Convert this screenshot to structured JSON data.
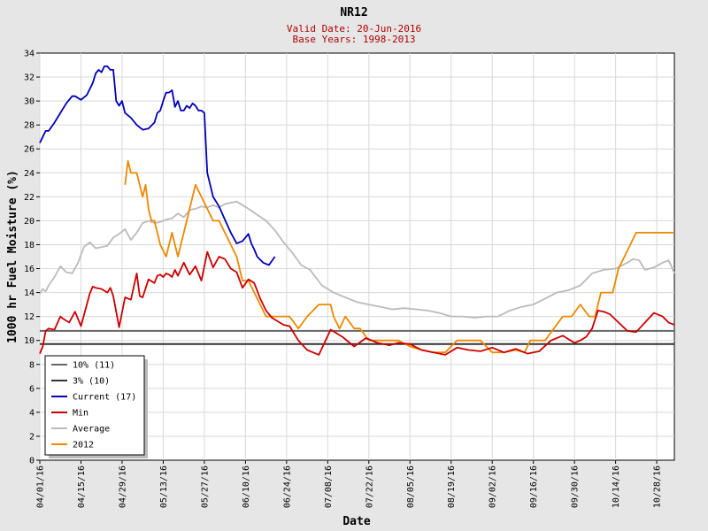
{
  "chart_data": {
    "type": "line",
    "title": "NR12",
    "subtitle_lines": [
      "Valid Date: 20-Jun-2016",
      "Base Years: 1998-2013"
    ],
    "xlabel": "Date",
    "ylabel": "1000 hr Fuel Moisture (%)",
    "ylim": [
      0,
      34
    ],
    "yticks": [
      0,
      2,
      4,
      6,
      8,
      10,
      12,
      14,
      16,
      18,
      20,
      22,
      24,
      26,
      28,
      30,
      32,
      34
    ],
    "xlim": [
      "2016-04-01",
      "2016-11-03"
    ],
    "xticks": [
      "04/01/16",
      "04/15/16",
      "04/29/16",
      "05/13/16",
      "05/27/16",
      "06/10/16",
      "06/24/16",
      "07/08/16",
      "07/22/16",
      "08/05/16",
      "08/19/16",
      "09/02/16",
      "09/16/16",
      "09/30/16",
      "10/14/16",
      "10/28/16"
    ],
    "grid": true,
    "legend_position": "bottom-left",
    "series": [
      {
        "name": "10% (11)",
        "color": "#666666",
        "type": "hline",
        "y": 10.8
      },
      {
        "name": "3% (10)",
        "color": "#333333",
        "type": "hline",
        "y": 9.7
      },
      {
        "name": "Current (17)",
        "color": "#0000bb",
        "x": [
          "2016-04-01",
          "2016-04-02",
          "2016-04-03",
          "2016-04-04",
          "2016-04-06",
          "2016-04-08",
          "2016-04-10",
          "2016-04-12",
          "2016-04-13",
          "2016-04-15",
          "2016-04-17",
          "2016-04-19",
          "2016-04-20",
          "2016-04-21",
          "2016-04-22",
          "2016-04-23",
          "2016-04-24",
          "2016-04-25",
          "2016-04-26",
          "2016-04-27",
          "2016-04-28",
          "2016-04-29",
          "2016-04-30",
          "2016-05-02",
          "2016-05-04",
          "2016-05-06",
          "2016-05-08",
          "2016-05-10",
          "2016-05-11",
          "2016-05-12",
          "2016-05-13",
          "2016-05-14",
          "2016-05-15",
          "2016-05-16",
          "2016-05-17",
          "2016-05-18",
          "2016-05-19",
          "2016-05-20",
          "2016-05-21",
          "2016-05-22",
          "2016-05-23",
          "2016-05-24",
          "2016-05-25",
          "2016-05-26",
          "2016-05-27",
          "2016-05-28",
          "2016-05-29",
          "2016-05-30",
          "2016-06-01",
          "2016-06-03",
          "2016-06-05",
          "2016-06-07",
          "2016-06-09",
          "2016-06-11",
          "2016-06-12",
          "2016-06-13",
          "2016-06-14",
          "2016-06-16",
          "2016-06-18",
          "2016-06-20"
        ],
        "values": [
          26.5,
          27.0,
          27.5,
          27.5,
          28.2,
          29.0,
          29.8,
          30.4,
          30.4,
          30.1,
          30.5,
          31.5,
          32.3,
          32.6,
          32.4,
          32.9,
          32.9,
          32.6,
          32.6,
          30.0,
          29.6,
          30.0,
          29.0,
          28.6,
          28.0,
          27.6,
          27.7,
          28.2,
          29.0,
          29.2,
          30.0,
          30.7,
          30.7,
          30.9,
          29.5,
          30.0,
          29.2,
          29.2,
          29.6,
          29.4,
          29.8,
          29.6,
          29.2,
          29.2,
          29.0,
          24.0,
          23.0,
          22.0,
          21.2,
          20.1,
          19.0,
          18.1,
          18.3,
          18.9,
          18.1,
          17.6,
          17.0,
          16.5,
          16.3,
          17.0
        ]
      },
      {
        "name": "Min",
        "color": "#cc0000",
        "x": [
          "2016-04-01",
          "2016-04-02",
          "2016-04-03",
          "2016-04-04",
          "2016-04-06",
          "2016-04-08",
          "2016-04-09",
          "2016-04-11",
          "2016-04-13",
          "2016-04-15",
          "2016-04-17",
          "2016-04-18",
          "2016-04-19",
          "2016-04-20",
          "2016-04-22",
          "2016-04-24",
          "2016-04-25",
          "2016-04-26",
          "2016-04-28",
          "2016-04-30",
          "2016-05-02",
          "2016-05-04",
          "2016-05-05",
          "2016-05-06",
          "2016-05-08",
          "2016-05-10",
          "2016-05-11",
          "2016-05-12",
          "2016-05-13",
          "2016-05-14",
          "2016-05-15",
          "2016-05-16",
          "2016-05-17",
          "2016-05-18",
          "2016-05-20",
          "2016-05-22",
          "2016-05-24",
          "2016-05-26",
          "2016-05-28",
          "2016-05-30",
          "2016-06-01",
          "2016-06-03",
          "2016-06-05",
          "2016-06-07",
          "2016-06-09",
          "2016-06-11",
          "2016-06-13",
          "2016-06-15",
          "2016-06-17",
          "2016-06-19",
          "2016-06-21",
          "2016-06-23",
          "2016-06-25",
          "2016-06-28",
          "2016-07-01",
          "2016-07-05",
          "2016-07-09",
          "2016-07-13",
          "2016-07-17",
          "2016-07-21",
          "2016-07-25",
          "2016-07-29",
          "2016-08-01",
          "2016-08-05",
          "2016-08-09",
          "2016-08-13",
          "2016-08-17",
          "2016-08-21",
          "2016-08-25",
          "2016-08-29",
          "2016-09-02",
          "2016-09-06",
          "2016-09-10",
          "2016-09-14",
          "2016-09-18",
          "2016-09-22",
          "2016-09-26",
          "2016-09-30",
          "2016-10-02",
          "2016-10-04",
          "2016-10-06",
          "2016-10-08",
          "2016-10-10",
          "2016-10-12",
          "2016-10-15",
          "2016-10-18",
          "2016-10-21",
          "2016-10-24",
          "2016-10-27",
          "2016-10-30",
          "2016-11-01",
          "2016-11-03"
        ],
        "values": [
          8.9,
          9.5,
          10.8,
          11.0,
          10.9,
          12.0,
          11.8,
          11.5,
          12.4,
          11.2,
          13.0,
          13.9,
          14.5,
          14.4,
          14.3,
          14.0,
          14.4,
          13.7,
          11.1,
          13.6,
          13.4,
          15.6,
          13.7,
          13.6,
          15.1,
          14.8,
          15.4,
          15.5,
          15.3,
          15.6,
          15.5,
          15.3,
          15.9,
          15.4,
          16.5,
          15.5,
          16.2,
          15.0,
          17.4,
          16.1,
          17.0,
          16.8,
          16.0,
          15.7,
          14.4,
          15.1,
          14.8,
          13.5,
          12.5,
          11.9,
          11.6,
          11.3,
          11.2,
          10.0,
          9.2,
          8.8,
          10.9,
          10.3,
          9.5,
          10.2,
          9.8,
          9.6,
          9.8,
          9.7,
          9.2,
          9.0,
          8.8,
          9.4,
          9.2,
          9.1,
          9.4,
          9.0,
          9.3,
          8.9,
          9.1,
          10.0,
          10.4,
          9.8,
          10.0,
          10.3,
          11.0,
          12.5,
          12.4,
          12.2,
          11.5,
          10.8,
          10.7,
          11.5,
          12.3,
          12.0,
          11.5,
          11.3
        ]
      },
      {
        "name": "Average",
        "color": "#bbbbbb",
        "x": [
          "2016-04-01",
          "2016-04-02",
          "2016-04-03",
          "2016-04-04",
          "2016-04-06",
          "2016-04-08",
          "2016-04-10",
          "2016-04-12",
          "2016-04-14",
          "2016-04-16",
          "2016-04-18",
          "2016-04-20",
          "2016-04-22",
          "2016-04-24",
          "2016-04-26",
          "2016-04-28",
          "2016-04-30",
          "2016-05-02",
          "2016-05-04",
          "2016-05-06",
          "2016-05-08",
          "2016-05-10",
          "2016-05-12",
          "2016-05-14",
          "2016-05-16",
          "2016-05-18",
          "2016-05-20",
          "2016-05-22",
          "2016-05-24",
          "2016-05-26",
          "2016-05-28",
          "2016-05-30",
          "2016-06-01",
          "2016-06-03",
          "2016-06-05",
          "2016-06-07",
          "2016-06-09",
          "2016-06-11",
          "2016-06-14",
          "2016-06-17",
          "2016-06-20",
          "2016-06-23",
          "2016-06-26",
          "2016-06-29",
          "2016-07-02",
          "2016-07-06",
          "2016-07-10",
          "2016-07-14",
          "2016-07-18",
          "2016-07-22",
          "2016-07-26",
          "2016-07-30",
          "2016-08-03",
          "2016-08-07",
          "2016-08-11",
          "2016-08-15",
          "2016-08-19",
          "2016-08-23",
          "2016-08-27",
          "2016-08-31",
          "2016-09-04",
          "2016-09-08",
          "2016-09-12",
          "2016-09-16",
          "2016-09-20",
          "2016-09-24",
          "2016-09-28",
          "2016-10-02",
          "2016-10-06",
          "2016-10-10",
          "2016-10-14",
          "2016-10-18",
          "2016-10-20",
          "2016-10-22",
          "2016-10-24",
          "2016-10-27",
          "2016-10-30",
          "2016-11-01",
          "2016-11-02",
          "2016-11-03"
        ],
        "values": [
          13.9,
          14.3,
          14.1,
          14.6,
          15.3,
          16.2,
          15.7,
          15.6,
          16.5,
          17.8,
          18.2,
          17.7,
          17.8,
          17.9,
          18.6,
          18.9,
          19.3,
          18.4,
          19.0,
          19.8,
          20.0,
          19.8,
          19.9,
          20.1,
          20.2,
          20.6,
          20.3,
          20.9,
          21.0,
          21.2,
          21.1,
          21.3,
          21.1,
          21.4,
          21.5,
          21.6,
          21.3,
          21.0,
          20.5,
          20.0,
          19.2,
          18.2,
          17.3,
          16.3,
          15.9,
          14.6,
          14.0,
          13.6,
          13.2,
          13.0,
          12.8,
          12.6,
          12.7,
          12.6,
          12.5,
          12.3,
          12.0,
          12.0,
          11.9,
          12.0,
          12.0,
          12.5,
          12.8,
          13.0,
          13.5,
          14.0,
          14.2,
          14.6,
          15.6,
          15.9,
          16.0,
          16.5,
          16.8,
          16.7,
          15.9,
          16.1,
          16.5,
          16.7,
          16.2,
          15.6
        ]
      },
      {
        "name": "2012",
        "color": "#ee8800",
        "x": [
          "2016-04-30",
          "2016-05-01",
          "2016-05-02",
          "2016-05-04",
          "2016-05-06",
          "2016-05-07",
          "2016-05-08",
          "2016-05-09",
          "2016-05-10",
          "2016-05-12",
          "2016-05-14",
          "2016-05-16",
          "2016-05-17",
          "2016-05-18",
          "2016-05-20",
          "2016-05-22",
          "2016-05-24",
          "2016-05-26",
          "2016-05-28",
          "2016-05-30",
          "2016-06-01",
          "2016-06-03",
          "2016-06-05",
          "2016-06-07",
          "2016-06-09",
          "2016-06-11",
          "2016-06-13",
          "2016-06-15",
          "2016-06-17",
          "2016-06-19",
          "2016-06-22",
          "2016-06-25",
          "2016-06-28",
          "2016-07-01",
          "2016-07-05",
          "2016-07-09",
          "2016-07-10",
          "2016-07-12",
          "2016-07-14",
          "2016-07-17",
          "2016-07-19",
          "2016-07-22",
          "2016-07-25",
          "2016-07-27",
          "2016-07-29",
          "2016-08-01",
          "2016-08-05",
          "2016-08-09",
          "2016-08-13",
          "2016-08-17",
          "2016-08-21",
          "2016-08-25",
          "2016-08-29",
          "2016-09-02",
          "2016-09-06",
          "2016-09-10",
          "2016-09-13",
          "2016-09-15",
          "2016-09-17",
          "2016-09-20",
          "2016-09-23",
          "2016-09-26",
          "2016-09-29",
          "2016-10-02",
          "2016-10-05",
          "2016-10-07",
          "2016-10-09",
          "2016-10-11",
          "2016-10-13",
          "2016-10-15",
          "2016-10-17",
          "2016-10-19",
          "2016-10-21",
          "2016-10-23",
          "2016-10-25",
          "2016-10-27",
          "2016-10-29",
          "2016-10-31",
          "2016-11-02",
          "2016-11-03"
        ],
        "values": [
          23.0,
          25.0,
          24.0,
          24.0,
          22.0,
          23.0,
          21.0,
          20.0,
          20.0,
          18.0,
          17.0,
          19.0,
          18.0,
          17.0,
          19.0,
          21.0,
          23.0,
          22.0,
          21.0,
          20.0,
          20.0,
          19.0,
          18.0,
          17.0,
          15.0,
          15.0,
          14.0,
          13.0,
          12.0,
          12.0,
          12.0,
          12.0,
          11.0,
          12.0,
          13.0,
          13.0,
          12.0,
          11.0,
          12.0,
          11.0,
          11.0,
          10.0,
          10.0,
          10.0,
          10.0,
          10.0,
          9.5,
          9.2,
          9.0,
          9.0,
          10.0,
          10.0,
          10.0,
          9.0,
          9.0,
          9.2,
          9.0,
          10.0,
          10.0,
          10.0,
          11.0,
          12.0,
          12.0,
          13.0,
          12.0,
          12.0,
          14.0,
          14.0,
          14.0,
          16.0,
          17.0,
          18.0,
          19.0,
          19.0,
          19.0,
          19.0,
          19.0,
          19.0,
          19.0,
          19.0
        ]
      }
    ]
  }
}
